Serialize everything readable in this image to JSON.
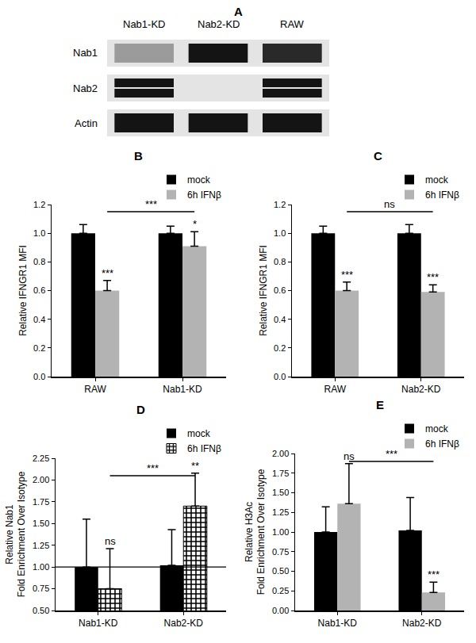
{
  "blot": {
    "panel": "A",
    "lanes": [
      "Nab1-KD",
      "Nab2-KD",
      "RAW"
    ],
    "rows": [
      {
        "name": "Nab1",
        "bands": [
          [
            0.35
          ],
          [
            1
          ],
          [
            0.9
          ]
        ]
      },
      {
        "name": "Nab2",
        "bands": [
          [
            1,
            1
          ],
          [
            0,
            0
          ],
          [
            1,
            1
          ]
        ]
      },
      {
        "name": "Actin",
        "bands": [
          [
            1
          ],
          [
            1
          ],
          [
            1
          ]
        ]
      }
    ]
  },
  "chart_data": [
    {
      "panel": "B",
      "type": "bar",
      "categories": [
        "RAW",
        "Nab1-KD"
      ],
      "y_label": "Relative IFNGR1 MFI",
      "ylim": [
        0,
        1.2
      ],
      "yticks": [
        {
          "value": 0,
          "label": "0.0"
        },
        0.2,
        0.4,
        0.6,
        0.8,
        {
          "value": 1,
          "label": "1.0"
        },
        1.2
      ],
      "grid": false,
      "legend": "top right",
      "series": [
        {
          "name": "mock",
          "color": "#000000",
          "values": [
            1.0,
            1.0
          ],
          "errors": [
            0.06,
            0.05
          ],
          "significance": [
            null,
            null
          ]
        },
        {
          "name": "6h IFNβ",
          "color": "#b3b3b3",
          "values": [
            0.6,
            0.91
          ],
          "errors": [
            0.07,
            0.1
          ],
          "significance": [
            "***",
            "*"
          ]
        }
      ],
      "comparisons": [
        {
          "categories": [
            0,
            1
          ],
          "series": 1,
          "y": 1.15,
          "text": "***"
        }
      ]
    },
    {
      "panel": "C",
      "type": "bar",
      "categories": [
        "RAW",
        "Nab2-KD"
      ],
      "y_label": "Relative IFNGR1 MFI",
      "ylim": [
        0,
        1.2
      ],
      "yticks": [
        {
          "value": 0,
          "label": "0.0"
        },
        0.2,
        0.4,
        0.6,
        0.8,
        {
          "value": 1,
          "label": "1.0"
        },
        1.2
      ],
      "grid": false,
      "legend": "top right",
      "series": [
        {
          "name": "mock",
          "color": "#000000",
          "values": [
            1.0,
            1.0
          ],
          "errors": [
            0.05,
            0.06
          ],
          "significance": [
            null,
            null
          ]
        },
        {
          "name": "6h IFNβ",
          "color": "#b3b3b3",
          "values": [
            0.6,
            0.59
          ],
          "errors": [
            0.06,
            0.05
          ],
          "significance": [
            "***",
            "***"
          ]
        }
      ],
      "comparisons": [
        {
          "categories": [
            0,
            1
          ],
          "series": 1,
          "y": 1.15,
          "text": "ns"
        }
      ]
    },
    {
      "panel": "D",
      "type": "bar",
      "categories": [
        "Nab1-KD",
        "Nab2-KD"
      ],
      "y_label": "Relative Nab1\nFold Enrichment Over Isotype",
      "ylim": [
        0.5,
        2.25
      ],
      "yticks": [
        {
          "value": 0.5,
          "label": "0.50"
        },
        0.75,
        {
          "value": 1,
          "label": "1.00"
        },
        1.25,
        {
          "value": 1.5,
          "label": "1.50"
        },
        1.75,
        {
          "value": 2,
          "label": "2.00"
        },
        2.25
      ],
      "grid": false,
      "legend": "top right",
      "reference_line": 1,
      "series": [
        {
          "name": "mock",
          "color": "#000000",
          "values": [
            1.0,
            1.02
          ],
          "errors": [
            0.55,
            0.41
          ],
          "significance": [
            null,
            null
          ]
        },
        {
          "name": "6h IFNβ",
          "color": "#000000",
          "marker": "checkered",
          "values": [
            0.75,
            1.7
          ],
          "errors": [
            0.46,
            0.38
          ],
          "significance": [
            "ns",
            "**"
          ]
        }
      ],
      "comparisons": [
        {
          "categories": [
            0,
            1
          ],
          "series": 1,
          "y": 2.05,
          "text": "***"
        }
      ]
    },
    {
      "panel": "E",
      "type": "bar",
      "categories": [
        "Nab1-KD",
        "Nab2-KD"
      ],
      "y_label": "Relative H3Ac\nFold Enrichment Over Isotype",
      "ylim": [
        0,
        2
      ],
      "yticks": [
        {
          "value": 0,
          "label": "0.00"
        },
        0.25,
        {
          "value": 0.5,
          "label": "0.50"
        },
        0.75,
        {
          "value": 1,
          "label": "1.00"
        },
        1.25,
        {
          "value": 1.5,
          "label": "1.50"
        },
        1.75,
        {
          "value": 2,
          "label": "2.00"
        }
      ],
      "grid": false,
      "legend": "top right",
      "series": [
        {
          "name": "mock",
          "color": "#000000",
          "values": [
            1.0,
            1.02
          ],
          "errors": [
            0.32,
            0.42
          ],
          "significance": [
            null,
            null
          ]
        },
        {
          "name": "6h IFNβ",
          "color": "#b3b3b3",
          "values": [
            1.36,
            0.23
          ],
          "errors": [
            0.51,
            0.13
          ],
          "significance": [
            "ns",
            "***"
          ]
        }
      ],
      "comparisons": [
        {
          "categories": [
            0,
            1
          ],
          "series": 1,
          "y": 1.9,
          "text": "***"
        }
      ]
    }
  ]
}
